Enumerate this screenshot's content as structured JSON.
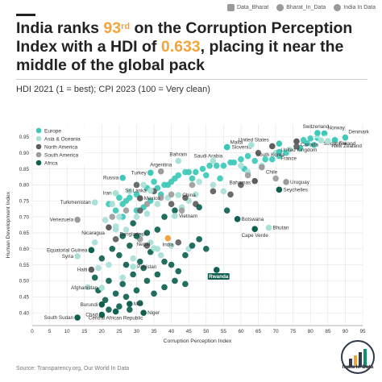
{
  "header": {
    "social": [
      {
        "icon": "instagram-icon",
        "label": "Data_Bharat"
      },
      {
        "icon": "twitter-icon",
        "label": "Bharat_In_Data"
      },
      {
        "icon": "facebook-icon",
        "label": "India In Data"
      }
    ],
    "title_part1": "India ranks ",
    "title_rank": "93",
    "title_rank_suffix": "rd",
    "title_part2": " on the Corruption Perception Index with a HDI of ",
    "title_hdi": "0.633",
    "title_part3": ", placing it near the middle of the global pack",
    "subtitle": "HDI 2021 (1 = best); CPI 2023 (100 = Very clean)"
  },
  "footer": {
    "source": "Source: Transparency.org, Our World In Data",
    "logo_text": "India In Data"
  },
  "colors": {
    "Europe": "#3cc9b8",
    "Asia & Oceania": "#a9e0d8",
    "North America": "#5e5e5e",
    "South America": "#9c9c9c",
    "Africa": "#0e6150",
    "india": "#f2a33a",
    "highlight_box": "#0e6150"
  },
  "chart_data": {
    "type": "scatter",
    "xlabel": "Corruption Perception Index",
    "ylabel": "Human Development Index",
    "xlim": [
      0,
      95
    ],
    "ylim": [
      0.36,
      0.99
    ],
    "xticks": [
      0,
      5,
      10,
      15,
      20,
      25,
      30,
      35,
      40,
      45,
      50,
      55,
      60,
      65,
      70,
      75,
      80,
      85,
      90,
      95
    ],
    "yticks": [
      0.4,
      0.45,
      0.5,
      0.55,
      0.6,
      0.65,
      0.7,
      0.75,
      0.8,
      0.85,
      0.9,
      0.95
    ],
    "grid": true,
    "legend_position": "top-left",
    "legend": [
      "Europe",
      "Asia & Oceania",
      "North America",
      "South America",
      "Africa"
    ],
    "labeled_points": [
      {
        "label": "Switzerland",
        "x": 82,
        "y": 0.962,
        "group": "Europe"
      },
      {
        "label": "Norway",
        "x": 84,
        "y": 0.961,
        "group": "Europe"
      },
      {
        "label": "Denmark",
        "x": 90,
        "y": 0.948,
        "group": "Europe"
      },
      {
        "label": "United States",
        "x": 69,
        "y": 0.921,
        "group": "North America"
      },
      {
        "label": "Saudi Arabia",
        "x": 52,
        "y": 0.875,
        "group": "Asia & Oceania"
      },
      {
        "label": "Malta",
        "x": 56,
        "y": 0.918,
        "group": "Europe"
      },
      {
        "label": "Slovenia",
        "x": 56,
        "y": 0.918,
        "group": "Europe"
      },
      {
        "label": "Sweden",
        "x": 82,
        "y": 0.947,
        "group": "Europe"
      },
      {
        "label": "Finland",
        "x": 87,
        "y": 0.94,
        "group": "Europe"
      },
      {
        "label": "Singapore",
        "x": 83,
        "y": 0.939,
        "group": "Asia & Oceania"
      },
      {
        "label": "New Zealand",
        "x": 85,
        "y": 0.937,
        "group": "Asia & Oceania"
      },
      {
        "label": "Canada",
        "x": 76,
        "y": 0.936,
        "group": "North America"
      },
      {
        "label": "France",
        "x": 71,
        "y": 0.903,
        "group": "Europe"
      },
      {
        "label": "United Kingdom",
        "x": 71,
        "y": 0.929,
        "group": "Europe"
      },
      {
        "label": "Bahrain",
        "x": 42,
        "y": 0.875,
        "group": "Asia & Oceania"
      },
      {
        "label": "Argentina",
        "x": 37,
        "y": 0.842,
        "group": "South America"
      },
      {
        "label": "Chile",
        "x": 66,
        "y": 0.855,
        "group": "South America"
      },
      {
        "label": "South Korea",
        "x": 63,
        "y": 0.925,
        "group": "Asia & Oceania"
      },
      {
        "label": "Russia",
        "x": 26,
        "y": 0.822,
        "group": "Europe"
      },
      {
        "label": "Turkey",
        "x": 34,
        "y": 0.838,
        "group": "Europe"
      },
      {
        "label": "Iran",
        "x": 24,
        "y": 0.774,
        "group": "Asia & Oceania"
      },
      {
        "label": "Sri Lanka",
        "x": 34,
        "y": 0.782,
        "group": "Asia & Oceania"
      },
      {
        "label": "Uruguay",
        "x": 73,
        "y": 0.809,
        "group": "South America"
      },
      {
        "label": "Bahamas",
        "x": 64,
        "y": 0.812,
        "group": "North America"
      },
      {
        "label": "Seychelles",
        "x": 71,
        "y": 0.785,
        "group": "Africa"
      },
      {
        "label": "Turkmenistan",
        "x": 18,
        "y": 0.745,
        "group": "Asia & Oceania"
      },
      {
        "label": "Mexico",
        "x": 31,
        "y": 0.758,
        "group": "North America"
      },
      {
        "label": "China",
        "x": 42,
        "y": 0.768,
        "group": "Asia & Oceania"
      },
      {
        "label": "Venezuela",
        "x": 13,
        "y": 0.691,
        "group": "South America"
      },
      {
        "label": "Vietnam",
        "x": 41,
        "y": 0.703,
        "group": "Asia & Oceania"
      },
      {
        "label": "Botswana",
        "x": 59,
        "y": 0.693,
        "group": "Africa"
      },
      {
        "label": "Bhutan",
        "x": 68,
        "y": 0.666,
        "group": "Asia & Oceania"
      },
      {
        "label": "Cape Verde",
        "x": 64,
        "y": 0.662,
        "group": "Africa"
      },
      {
        "label": "Nicaragua",
        "x": 22,
        "y": 0.667,
        "group": "North America"
      },
      {
        "label": "Bangladesh",
        "x": 24,
        "y": 0.661,
        "group": "Asia & Oceania"
      },
      {
        "label": "Nepal",
        "x": 35,
        "y": 0.602,
        "group": "Asia & Oceania"
      },
      {
        "label": "India",
        "x": 39,
        "y": 0.633,
        "group": "Asia & Oceania"
      },
      {
        "label": "Equatorial Guinea",
        "x": 17,
        "y": 0.596,
        "group": "Africa"
      },
      {
        "label": "Syria",
        "x": 13,
        "y": 0.577,
        "group": "Asia & Oceania"
      },
      {
        "label": "Haiti",
        "x": 17,
        "y": 0.535,
        "group": "North America"
      },
      {
        "label": "Pakistan",
        "x": 29,
        "y": 0.544,
        "group": "Asia & Oceania"
      },
      {
        "label": "Rwanda",
        "x": 53,
        "y": 0.534,
        "group": "Africa"
      },
      {
        "label": "Afghanistan",
        "x": 20,
        "y": 0.478,
        "group": "Asia & Oceania"
      },
      {
        "label": "Burundi",
        "x": 20,
        "y": 0.426,
        "group": "Africa"
      },
      {
        "label": "Mali",
        "x": 28,
        "y": 0.428,
        "group": "Africa"
      },
      {
        "label": "Chad",
        "x": 20,
        "y": 0.394,
        "group": "Africa"
      },
      {
        "label": "Niger",
        "x": 32,
        "y": 0.4,
        "group": "Africa"
      },
      {
        "label": "Central African Republic",
        "x": 24,
        "y": 0.404,
        "group": "Africa"
      },
      {
        "label": "South Sudan",
        "x": 13,
        "y": 0.385,
        "group": "Africa"
      }
    ],
    "unlabeled_points": [
      {
        "group": "Europe",
        "points": [
          [
            78,
            0.94
          ],
          [
            79,
            0.93
          ],
          [
            80,
            0.945
          ],
          [
            81,
            0.925
          ],
          [
            77,
            0.915
          ],
          [
            73,
            0.9
          ],
          [
            71,
            0.89
          ],
          [
            69,
            0.88
          ],
          [
            67,
            0.88
          ],
          [
            64,
            0.875
          ],
          [
            62,
            0.89
          ],
          [
            60,
            0.88
          ],
          [
            58,
            0.87
          ],
          [
            57,
            0.87
          ],
          [
            55,
            0.86
          ],
          [
            53,
            0.86
          ],
          [
            51,
            0.86
          ],
          [
            49,
            0.85
          ],
          [
            47,
            0.84
          ],
          [
            45,
            0.84
          ],
          [
            44,
            0.84
          ],
          [
            42,
            0.83
          ],
          [
            41,
            0.82
          ],
          [
            40,
            0.81
          ],
          [
            39,
            0.8
          ],
          [
            38,
            0.8
          ],
          [
            36,
            0.79
          ],
          [
            35,
            0.81
          ],
          [
            33,
            0.79
          ],
          [
            30,
            0.77
          ],
          [
            28,
            0.76
          ],
          [
            27,
            0.75
          ],
          [
            26,
            0.74
          ],
          [
            25,
            0.76
          ],
          [
            34,
            0.75
          ],
          [
            37,
            0.77
          ],
          [
            46,
            0.82
          ],
          [
            50,
            0.83
          ],
          [
            54,
            0.82
          ],
          [
            61,
            0.85
          ],
          [
            22,
            0.74
          ],
          [
            24,
            0.72
          ],
          [
            26,
            0.7
          ],
          [
            30,
            0.72
          ],
          [
            32,
            0.73
          ]
        ]
      },
      {
        "group": "Asia & Oceania",
        "points": [
          [
            30,
            0.7
          ],
          [
            33,
            0.71
          ],
          [
            36,
            0.74
          ],
          [
            39,
            0.76
          ],
          [
            43,
            0.73
          ],
          [
            45,
            0.75
          ],
          [
            48,
            0.81
          ],
          [
            52,
            0.8
          ],
          [
            55,
            0.78
          ],
          [
            60,
            0.86
          ],
          [
            62,
            0.84
          ],
          [
            66,
            0.86
          ],
          [
            70,
            0.9
          ],
          [
            74,
            0.91
          ],
          [
            25,
            0.7
          ],
          [
            21,
            0.69
          ],
          [
            24,
            0.67
          ],
          [
            27,
            0.66
          ],
          [
            31,
            0.64
          ],
          [
            34,
            0.62
          ],
          [
            36,
            0.6
          ],
          [
            37,
            0.58
          ],
          [
            40,
            0.61
          ],
          [
            45,
            0.6
          ],
          [
            18,
            0.62
          ],
          [
            22,
            0.55
          ],
          [
            26,
            0.51
          ],
          [
            29,
            0.57
          ],
          [
            16,
            0.48
          ],
          [
            19,
            0.54
          ],
          [
            23,
            0.74
          ],
          [
            28,
            0.78
          ],
          [
            32,
            0.8
          ],
          [
            47,
            0.77
          ]
        ]
      },
      {
        "group": "North America",
        "points": [
          [
            30,
            0.8
          ],
          [
            35,
            0.78
          ],
          [
            40,
            0.74
          ],
          [
            44,
            0.76
          ],
          [
            47,
            0.74
          ],
          [
            52,
            0.78
          ],
          [
            57,
            0.77
          ],
          [
            60,
            0.8
          ],
          [
            31,
            0.72
          ],
          [
            24,
            0.63
          ],
          [
            33,
            0.61
          ],
          [
            42,
            0.62
          ],
          [
            65,
            0.9
          ],
          [
            76,
            0.92
          ]
        ]
      },
      {
        "group": "South America",
        "points": [
          [
            37,
            0.76
          ],
          [
            40,
            0.77
          ],
          [
            43,
            0.72
          ],
          [
            46,
            0.8
          ],
          [
            62,
            0.83
          ],
          [
            70,
            0.82
          ],
          [
            23,
            0.7
          ],
          [
            27,
            0.72
          ],
          [
            31,
            0.63
          ],
          [
            33,
            0.74
          ]
        ]
      },
      {
        "group": "Africa",
        "points": [
          [
            56,
            0.72
          ],
          [
            48,
            0.73
          ],
          [
            41,
            0.72
          ],
          [
            38,
            0.7
          ],
          [
            36,
            0.66
          ],
          [
            33,
            0.65
          ],
          [
            30,
            0.64
          ],
          [
            28,
            0.61
          ],
          [
            25,
            0.58
          ],
          [
            27,
            0.55
          ],
          [
            31,
            0.56
          ],
          [
            34,
            0.59
          ],
          [
            38,
            0.56
          ],
          [
            40,
            0.55
          ],
          [
            42,
            0.53
          ],
          [
            44,
            0.58
          ],
          [
            46,
            0.61
          ],
          [
            48,
            0.63
          ],
          [
            50,
            0.6
          ],
          [
            32,
            0.54
          ],
          [
            29,
            0.52
          ],
          [
            26,
            0.49
          ],
          [
            22,
            0.5
          ],
          [
            24,
            0.46
          ],
          [
            27,
            0.45
          ],
          [
            30,
            0.47
          ],
          [
            33,
            0.5
          ],
          [
            36,
            0.52
          ],
          [
            38,
            0.48
          ],
          [
            41,
            0.5
          ],
          [
            35,
            0.46
          ],
          [
            21,
            0.44
          ],
          [
            25,
            0.42
          ],
          [
            28,
            0.41
          ],
          [
            31,
            0.43
          ],
          [
            22,
            0.41
          ],
          [
            19,
            0.47
          ],
          [
            20,
            0.57
          ],
          [
            23,
            0.6
          ],
          [
            26,
            0.64
          ],
          [
            29,
            0.68
          ],
          [
            18,
            0.51
          ],
          [
            44,
            0.49
          ]
        ]
      }
    ]
  }
}
